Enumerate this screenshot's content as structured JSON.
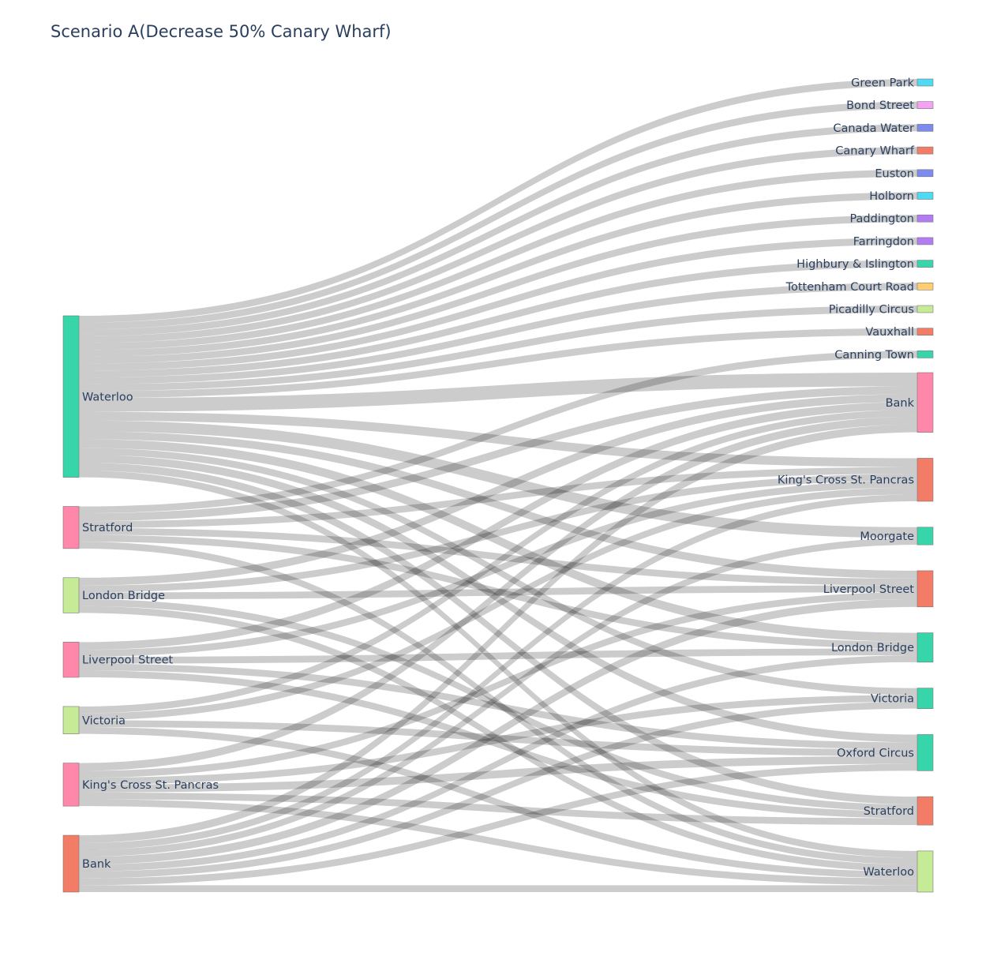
{
  "chart_data": {
    "type": "sankey",
    "title": "Scenario A(Decrease 50% Canary Wharf)",
    "colors": {
      "link": "rgba(0,0,0,0.2)",
      "node_border": "#777777",
      "label": "#2a3f5f",
      "teal": "#36d6aa",
      "pink": "#ff87aa",
      "salmon": "#f27c66",
      "lime": "#c5eb96",
      "cyan": "#4fd9f2",
      "violet": "#f5a2f5",
      "indigo": "#7d8bef",
      "purple": "#b37cf3",
      "yellow": "#ffcd70"
    },
    "sources": [
      {
        "name": "Waterloo",
        "color": "teal"
      },
      {
        "name": "Stratford",
        "color": "pink"
      },
      {
        "name": "London Bridge",
        "color": "lime"
      },
      {
        "name": "Liverpool Street",
        "color": "pink"
      },
      {
        "name": "Victoria",
        "color": "lime"
      },
      {
        "name": "King's Cross St. Pancras",
        "color": "pink"
      },
      {
        "name": "Bank",
        "color": "salmon"
      }
    ],
    "targets": [
      {
        "name": "Green Park",
        "color": "cyan"
      },
      {
        "name": "Bond Street",
        "color": "violet"
      },
      {
        "name": "Canada Water",
        "color": "indigo"
      },
      {
        "name": "Canary Wharf",
        "color": "salmon"
      },
      {
        "name": "Euston",
        "color": "indigo"
      },
      {
        "name": "Holborn",
        "color": "cyan"
      },
      {
        "name": "Paddington",
        "color": "purple"
      },
      {
        "name": "Farringdon",
        "color": "purple"
      },
      {
        "name": "Highbury & Islington",
        "color": "teal"
      },
      {
        "name": "Tottenham Court Road",
        "color": "yellow"
      },
      {
        "name": "Picadilly Circus",
        "color": "lime"
      },
      {
        "name": "Vauxhall",
        "color": "salmon"
      },
      {
        "name": "Canning Town",
        "color": "teal"
      },
      {
        "name": "Bank",
        "color": "pink"
      },
      {
        "name": "King's Cross St. Pancras",
        "color": "salmon"
      },
      {
        "name": "Moorgate",
        "color": "teal"
      },
      {
        "name": "Liverpool Street",
        "color": "salmon"
      },
      {
        "name": "London Bridge",
        "color": "teal"
      },
      {
        "name": "Victoria",
        "color": "teal"
      },
      {
        "name": "Oxford Circus",
        "color": "teal"
      },
      {
        "name": "Stratford",
        "color": "salmon"
      },
      {
        "name": "Waterloo",
        "color": "lime"
      }
    ],
    "links": [
      {
        "source": "Waterloo",
        "target": "Green Park",
        "value": 14
      },
      {
        "source": "Waterloo",
        "target": "Bond Street",
        "value": 14
      },
      {
        "source": "Waterloo",
        "target": "Canada Water",
        "value": 14
      },
      {
        "source": "Waterloo",
        "target": "Canary Wharf",
        "value": 14
      },
      {
        "source": "Waterloo",
        "target": "Euston",
        "value": 14
      },
      {
        "source": "Waterloo",
        "target": "Holborn",
        "value": 14
      },
      {
        "source": "Waterloo",
        "target": "Paddington",
        "value": 14
      },
      {
        "source": "Waterloo",
        "target": "Farringdon",
        "value": 14
      },
      {
        "source": "Waterloo",
        "target": "Highbury & Islington",
        "value": 14
      },
      {
        "source": "Waterloo",
        "target": "Tottenham Court Road",
        "value": 14
      },
      {
        "source": "Waterloo",
        "target": "Picadilly Circus",
        "value": 14
      },
      {
        "source": "Waterloo",
        "target": "Vauxhall",
        "value": 14
      },
      {
        "source": "Waterloo",
        "target": "Bank",
        "value": 28
      },
      {
        "source": "Waterloo",
        "target": "King's Cross St. Pancras",
        "value": 18
      },
      {
        "source": "Waterloo",
        "target": "Moorgate",
        "value": 22
      },
      {
        "source": "Waterloo",
        "target": "Liverpool Street",
        "value": 16
      },
      {
        "source": "Waterloo",
        "target": "London Bridge",
        "value": 18
      },
      {
        "source": "Waterloo",
        "target": "Victoria",
        "value": 14
      },
      {
        "source": "Waterloo",
        "target": "Oxford Circus",
        "value": 16
      },
      {
        "source": "Waterloo",
        "target": "Stratford",
        "value": 16
      },
      {
        "source": "Waterloo",
        "target": "Waterloo",
        "value": 14
      },
      {
        "source": "Stratford",
        "target": "Canning Town",
        "value": 14
      },
      {
        "source": "Stratford",
        "target": "Bank",
        "value": 16
      },
      {
        "source": "Stratford",
        "target": "King's Cross St. Pancras",
        "value": 14
      },
      {
        "source": "Stratford",
        "target": "Liverpool Street",
        "value": 14
      },
      {
        "source": "Stratford",
        "target": "London Bridge",
        "value": 14
      },
      {
        "source": "Stratford",
        "target": "Waterloo",
        "value": 14
      },
      {
        "source": "London Bridge",
        "target": "Bank",
        "value": 16
      },
      {
        "source": "London Bridge",
        "target": "King's Cross St. Pancras",
        "value": 14
      },
      {
        "source": "London Bridge",
        "target": "Liverpool Street",
        "value": 14
      },
      {
        "source": "London Bridge",
        "target": "Stratford",
        "value": 14
      },
      {
        "source": "London Bridge",
        "target": "Waterloo",
        "value": 14
      },
      {
        "source": "Liverpool Street",
        "target": "Bank",
        "value": 16
      },
      {
        "source": "Liverpool Street",
        "target": "King's Cross St. Pancras",
        "value": 14
      },
      {
        "source": "Liverpool Street",
        "target": "London Bridge",
        "value": 14
      },
      {
        "source": "Liverpool Street",
        "target": "Oxford Circus",
        "value": 14
      },
      {
        "source": "Liverpool Street",
        "target": "Stratford",
        "value": 14
      },
      {
        "source": "Victoria",
        "target": "Bank",
        "value": 14
      },
      {
        "source": "Victoria",
        "target": "King's Cross St. Pancras",
        "value": 14
      },
      {
        "source": "Victoria",
        "target": "Oxford Circus",
        "value": 14
      },
      {
        "source": "Victoria",
        "target": "Waterloo",
        "value": 14
      },
      {
        "source": "King's Cross St. Pancras",
        "target": "Bank",
        "value": 16
      },
      {
        "source": "King's Cross St. Pancras",
        "target": "Liverpool Street",
        "value": 14
      },
      {
        "source": "King's Cross St. Pancras",
        "target": "Victoria",
        "value": 14
      },
      {
        "source": "King's Cross St. Pancras",
        "target": "Oxford Circus",
        "value": 16
      },
      {
        "source": "King's Cross St. Pancras",
        "target": "Stratford",
        "value": 14
      },
      {
        "source": "King's Cross St. Pancras",
        "target": "Waterloo",
        "value": 14
      },
      {
        "source": "Bank",
        "target": "Bank",
        "value": 16
      },
      {
        "source": "Bank",
        "target": "King's Cross St. Pancras",
        "value": 14
      },
      {
        "source": "Bank",
        "target": "Moorgate",
        "value": 14
      },
      {
        "source": "Bank",
        "target": "Liverpool Street",
        "value": 16
      },
      {
        "source": "Bank",
        "target": "London Bridge",
        "value": 14
      },
      {
        "source": "Bank",
        "target": "Victoria",
        "value": 14
      },
      {
        "source": "Bank",
        "target": "Oxford Circus",
        "value": 14
      },
      {
        "source": "Bank",
        "target": "Waterloo",
        "value": 14
      }
    ]
  }
}
